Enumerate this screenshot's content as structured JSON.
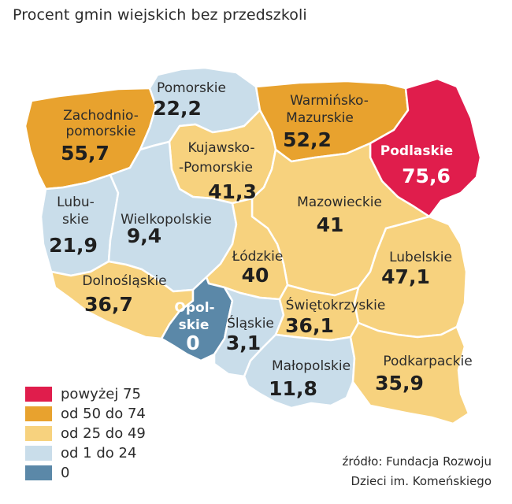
{
  "title": "Procent gmin wiejskich bez przedszkoli",
  "colors": {
    "above_75": "#e01d4c",
    "50_74": "#e8a22e",
    "25_49": "#f7d27e",
    "1_24": "#c9ddea",
    "zero": "#5b88a8"
  },
  "regions": {
    "zachodniopomorskie": {
      "name1": "Zachodnio-",
      "name2": "pomorskie",
      "value": "55,7"
    },
    "pomorskie": {
      "name": "Pomorskie",
      "value": "22,2"
    },
    "warminsko": {
      "name1": "Warmińsko-",
      "name2": "Mazurskie",
      "value": "52,2"
    },
    "podlaskie": {
      "name": "Podlaskie",
      "value": "75,6"
    },
    "kujawsko": {
      "name1": "Kujawsko-",
      "name2": "-Pomorskie",
      "value": "41,3"
    },
    "lubuskie": {
      "name1": "Lubu-",
      "name2": "skie",
      "value": "21,9"
    },
    "wielkopolskie": {
      "name": "Wielkopolskie",
      "value": "9,4"
    },
    "mazowieckie": {
      "name": "Mazowieckie",
      "value": "41"
    },
    "lodzkie": {
      "name": "Łódzkie",
      "value": "40"
    },
    "lubelskie": {
      "name": "Lubelskie",
      "value": "47,1"
    },
    "dolnoslaskie": {
      "name": "Dolnośląskie",
      "value": "36,7"
    },
    "opolskie": {
      "name1": "Opol-",
      "name2": "skie",
      "value": "0"
    },
    "slaskie": {
      "name": "Śląskie",
      "value": "3,1"
    },
    "swietokrzyskie": {
      "name": "Świętokrzyskie",
      "value": "36,1"
    },
    "malopolskie": {
      "name": "Małopolskie",
      "value": "11,8"
    },
    "podkarpackie": {
      "name": "Podkarpackie",
      "value": "35,9"
    }
  },
  "legend": [
    {
      "label": "powyżej 75"
    },
    {
      "label": "od 50 do 74"
    },
    {
      "label": "od 25 do 49"
    },
    {
      "label": "od 1 do 24"
    },
    {
      "label": "0"
    }
  ],
  "source": {
    "line1": "źródło: Fundacja Rozwoju",
    "line2": "Dzieci im. Komeńskiego"
  }
}
